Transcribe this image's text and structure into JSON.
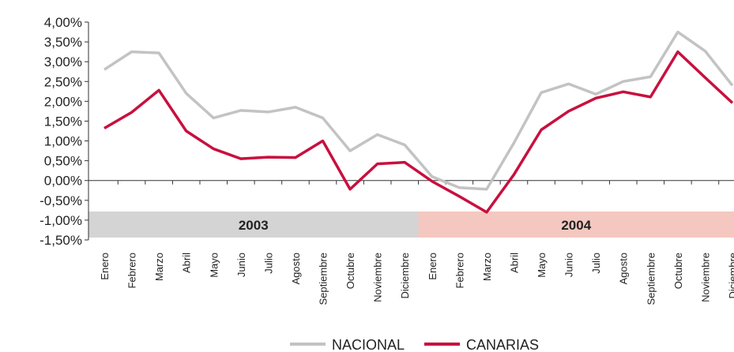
{
  "chart_data": {
    "type": "line",
    "categories": [
      "Enero",
      "Febrero",
      "Marzo",
      "Abril",
      "Mayo",
      "Junio",
      "Julio",
      "Agosto",
      "Septiembre",
      "Octubre",
      "Noviembre",
      "Diciembre",
      "Enero",
      "Febrero",
      "Marzo",
      "Abril",
      "Mayo",
      "Junio",
      "Julio",
      "Agosto",
      "Septiembre",
      "Octubre",
      "Noviembre",
      "Diciembre"
    ],
    "periods": [
      "2003",
      "2004"
    ],
    "period_colors": [
      "#d4d4d4",
      "#f4c8c0"
    ],
    "series": [
      {
        "name": "NACIONAL",
        "color": "#c3c3c3",
        "values": [
          2.8,
          3.25,
          3.22,
          2.2,
          1.58,
          1.77,
          1.73,
          1.85,
          1.58,
          0.75,
          1.16,
          0.9,
          0.1,
          -0.18,
          -0.22,
          0.95,
          2.22,
          2.44,
          2.18,
          2.5,
          2.62,
          3.75,
          3.27,
          2.4
        ]
      },
      {
        "name": "CANARIAS",
        "color": "#c8103e",
        "values": [
          1.32,
          1.72,
          2.28,
          1.25,
          0.8,
          0.55,
          0.59,
          0.58,
          1.0,
          -0.22,
          0.42,
          0.46,
          -0.02,
          -0.4,
          -0.8,
          0.15,
          1.28,
          1.75,
          2.08,
          2.24,
          2.11,
          3.25,
          2.6,
          1.96
        ]
      }
    ],
    "ylim": [
      -1.5,
      4.0
    ],
    "yticks": [
      {
        "value": 4.0,
        "label": "4,00%"
      },
      {
        "value": 3.5,
        "label": "3,50%"
      },
      {
        "value": 3.0,
        "label": "3,00%"
      },
      {
        "value": 2.5,
        "label": "2,50%"
      },
      {
        "value": 2.0,
        "label": "2,00%"
      },
      {
        "value": 1.5,
        "label": "1,50%"
      },
      {
        "value": 1.0,
        "label": "1,00%"
      },
      {
        "value": 0.5,
        "label": "0,50%"
      },
      {
        "value": 0.0,
        "label": "0,00%"
      },
      {
        "value": -0.5,
        "label": "-0,50%"
      },
      {
        "value": -1.0,
        "label": "-1,00%"
      },
      {
        "value": -1.5,
        "label": "-1,50%"
      }
    ],
    "grid": false,
    "legend": "bottom"
  }
}
